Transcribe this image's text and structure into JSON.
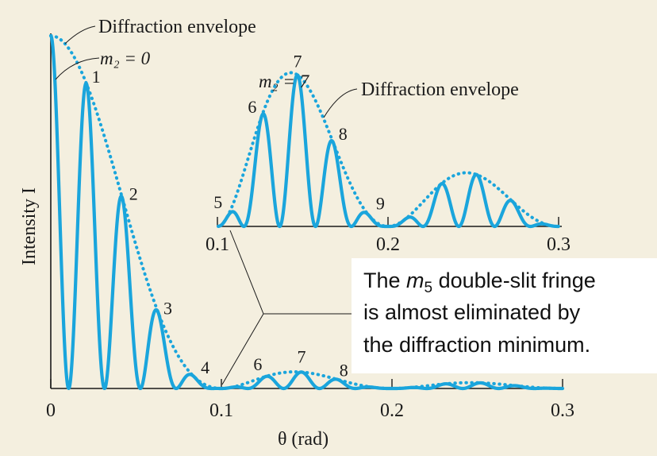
{
  "chart_data": {
    "type": "line",
    "xlabel": "θ (rad)",
    "ylabel": "Intensity I",
    "main": {
      "xlim": [
        0,
        0.3
      ],
      "x_ticks": [
        0,
        0.1,
        0.2,
        0.3
      ],
      "x_tick_labels": [
        "0",
        "0.1",
        "0.2",
        "0.3"
      ],
      "series": [
        {
          "name": "intensity",
          "style": "solid"
        },
        {
          "name": "Diffraction envelope",
          "style": "dotted"
        }
      ],
      "fringe_labels": [
        {
          "label": "1",
          "x": 0.021
        },
        {
          "label": "2",
          "x": 0.042
        },
        {
          "label": "3",
          "x": 0.063
        },
        {
          "label": "4",
          "x": 0.084
        },
        {
          "label": "6",
          "x": 0.126
        },
        {
          "label": "7",
          "x": 0.147
        },
        {
          "label": "8",
          "x": 0.168
        }
      ]
    },
    "inset": {
      "xlim": [
        0.1,
        0.3
      ],
      "x_ticks": [
        0.1,
        0.2,
        0.3
      ],
      "x_tick_labels": [
        "0.1",
        "0.2",
        "0.3"
      ],
      "fringe_labels": [
        {
          "label": "5",
          "x": 0.105
        },
        {
          "label": "6",
          "x": 0.126
        },
        {
          "label": "7",
          "x": 0.147
        },
        {
          "label": "8",
          "x": 0.168
        },
        {
          "label": "9",
          "x": 0.189
        }
      ]
    },
    "model": {
      "fringe_spacing": 0.021,
      "diffraction_minimum_1": 0.1,
      "diffraction_minimum_2": 0.2,
      "diffraction_minimum_3": 0.3
    }
  },
  "annotations": {
    "envelope_main": "Diffraction envelope",
    "m2_main": "m₂ = 0",
    "m2_inset": "m₂ = 7",
    "envelope_inset": "Diffraction envelope",
    "callout_line1_pre": "The ",
    "callout_line1_sub": "m",
    "callout_line1_subscript": "5",
    "callout_line1_post": " double-slit fringe",
    "callout_line2": "is almost eliminated by",
    "callout_line3": "the diffraction minimum."
  },
  "colors": {
    "background": "#f4efdf",
    "curve": "#1aa5dc",
    "text": "#1a1a1a"
  }
}
